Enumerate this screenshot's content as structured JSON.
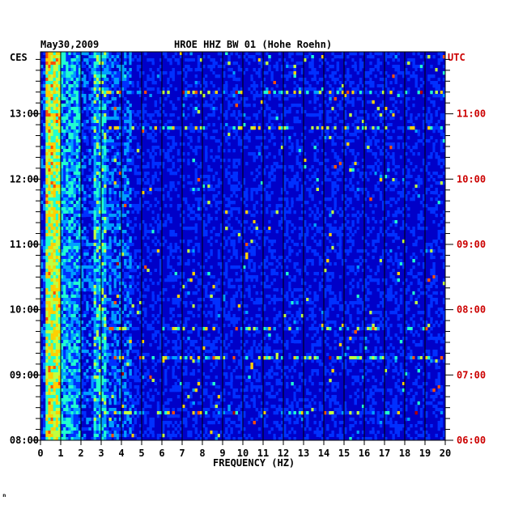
{
  "chart_data": {
    "type": "heatmap",
    "title": "HROE HHZ BW 01 (Hohe Roehn)",
    "date": "May30,2009",
    "xlabel": "FREQUENCY (HZ)",
    "x_ticks": [
      "0",
      "1",
      "2",
      "3",
      "4",
      "5",
      "6",
      "7",
      "8",
      "9",
      "10",
      "11",
      "12",
      "13",
      "14",
      "15",
      "16",
      "17",
      "18",
      "19",
      "20"
    ],
    "xlim": [
      0,
      20
    ],
    "left_axis_label": "CES",
    "right_axis_label": "UTC",
    "left_ticks": [
      "08:00",
      "09:00",
      "10:00",
      "11:00",
      "12:00",
      "13:00"
    ],
    "right_ticks": [
      "06:00",
      "07:00",
      "08:00",
      "09:00",
      "10:00",
      "11:00"
    ],
    "time_range_hours": [
      8.0,
      13.95
    ],
    "grid": "vertical lines every 1 Hz",
    "colormap": [
      "#00007e",
      "#0000c8",
      "#0030ff",
      "#00a0ff",
      "#20ffd0",
      "#c0ff40",
      "#ffd000",
      "#ff5000",
      "#b00000"
    ],
    "energy_bands": [
      {
        "f_start": 0.2,
        "f_end": 1.0,
        "level": "high"
      },
      {
        "f_start": 1.0,
        "f_end": 2.0,
        "level": "medium"
      },
      {
        "f_start": 2.6,
        "f_end": 3.2,
        "level": "medium"
      },
      {
        "f_start": 3.2,
        "f_end": 20.0,
        "level": "low"
      }
    ]
  },
  "footer_mark": "ₙ"
}
